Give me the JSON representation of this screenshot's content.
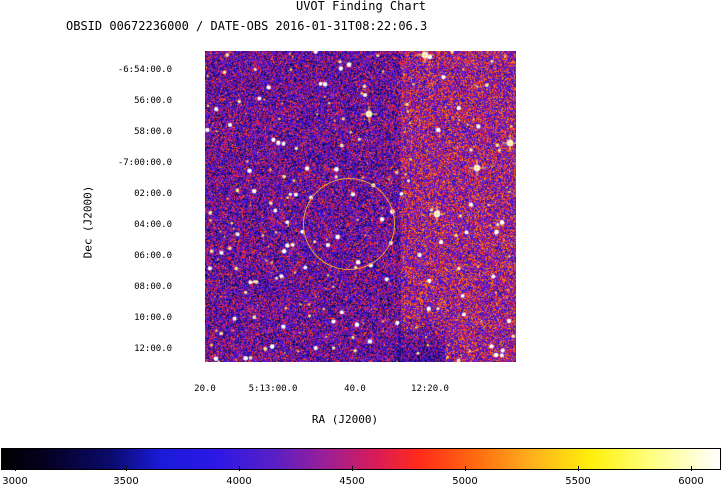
{
  "title": "UVOT Finding Chart",
  "subtitle": "OBSID 00672236000 / DATE-OBS 2016-01-31T08:22:06.3",
  "y_axis": {
    "label": "Dec (J2000)",
    "ticks": [
      "-6:54:00.0",
      "56:00.0",
      "58:00.0",
      "-7:00:00.0",
      "02:00.0",
      "04:00.0",
      "06:00.0",
      "08:00.0",
      "10:00.0",
      "12:00.0"
    ]
  },
  "x_axis": {
    "label": "RA (J2000)",
    "ticks": [
      "20.0",
      "5:13:00.0",
      "40.0",
      "12:20.0"
    ]
  },
  "colorbar": {
    "labels": [
      "3000",
      "3500",
      "4000",
      "4500",
      "5000",
      "5500",
      "6000"
    ]
  },
  "colors": {
    "circle": "#e8a23c",
    "background_low": "#2a1fd0",
    "background_high": "#d81b3a"
  }
}
